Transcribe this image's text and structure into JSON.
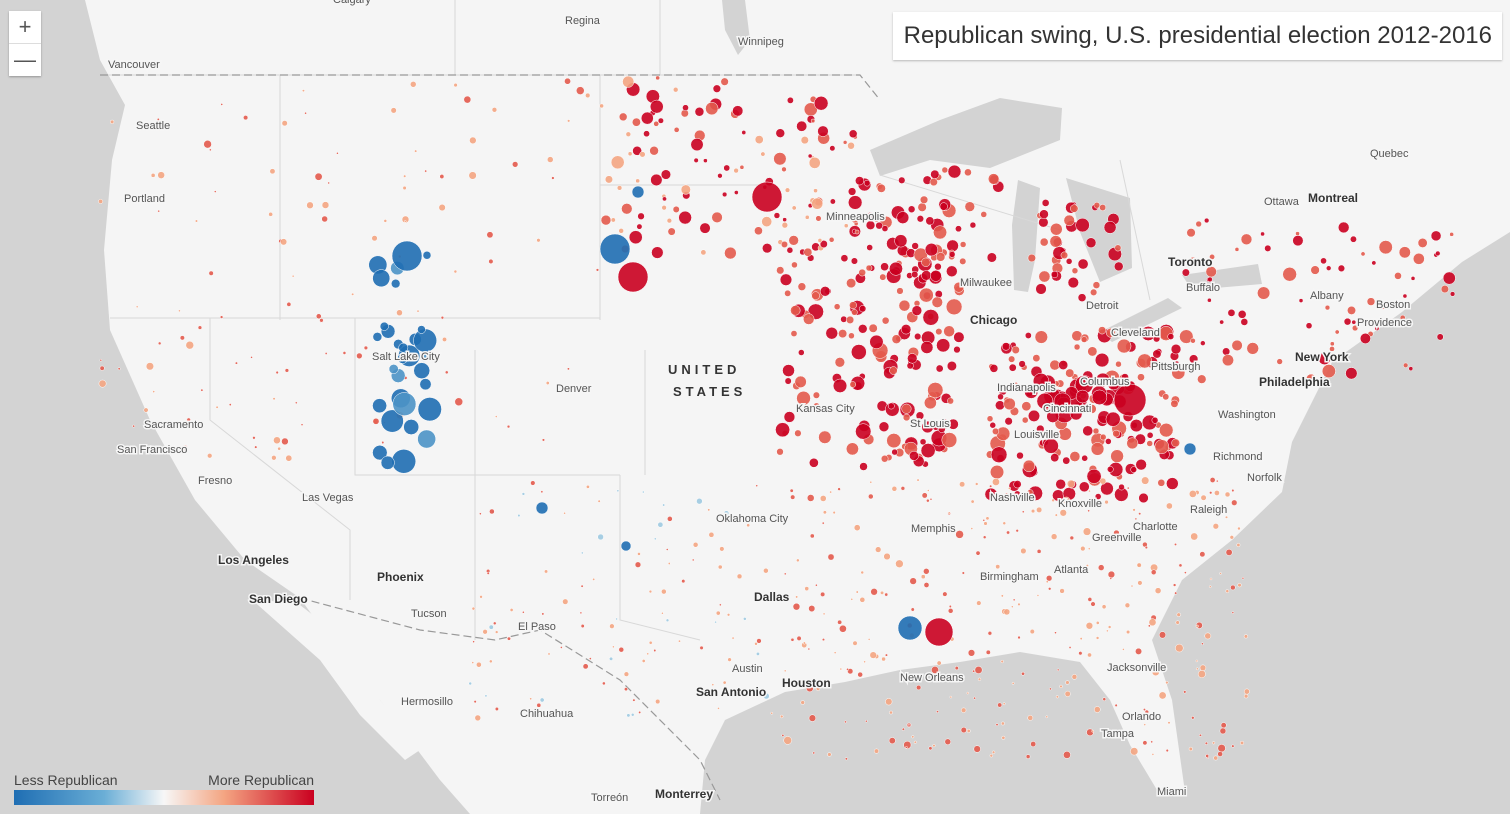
{
  "title": "Republican swing, U.S. presidential election 2012-2016",
  "zoom_controls": {
    "zoom_in": "+",
    "zoom_out": "—"
  },
  "legend": {
    "low_label": "Less Republican",
    "high_label": "More Republican",
    "colors": [
      "#1f6eb3",
      "#6aaed6",
      "#f7f7f7",
      "#f4a582",
      "#ca0020"
    ]
  },
  "map": {
    "water_color": "#d3d3d3",
    "land_color": "#f5f5f5",
    "country_label": [
      "UNITED",
      "STATES"
    ],
    "cities": [
      {
        "name": "Calgary"
      },
      {
        "name": "Regina"
      },
      {
        "name": "Winnipeg"
      },
      {
        "name": "Vancouver"
      },
      {
        "name": "Seattle"
      },
      {
        "name": "Portland"
      },
      {
        "name": "Quebec"
      },
      {
        "name": "Ottawa"
      },
      {
        "name": "Montreal",
        "major": true
      },
      {
        "name": "Toronto",
        "major": true
      },
      {
        "name": "Buffalo"
      },
      {
        "name": "Albany"
      },
      {
        "name": "Boston"
      },
      {
        "name": "Providence"
      },
      {
        "name": "New York",
        "major": true
      },
      {
        "name": "Philadelphia",
        "major": true
      },
      {
        "name": "Washington"
      },
      {
        "name": "Richmond"
      },
      {
        "name": "Norfolk"
      },
      {
        "name": "Raleigh"
      },
      {
        "name": "Charlotte"
      },
      {
        "name": "Greenville"
      },
      {
        "name": "Atlanta"
      },
      {
        "name": "Knoxville"
      },
      {
        "name": "Nashville"
      },
      {
        "name": "Birmingham"
      },
      {
        "name": "Memphis"
      },
      {
        "name": "Jacksonville"
      },
      {
        "name": "Orlando"
      },
      {
        "name": "Tampa"
      },
      {
        "name": "Miami"
      },
      {
        "name": "New Orleans"
      },
      {
        "name": "Houston",
        "major": true
      },
      {
        "name": "Austin"
      },
      {
        "name": "San Antonio",
        "major": true
      },
      {
        "name": "Dallas",
        "major": true
      },
      {
        "name": "Oklahoma City"
      },
      {
        "name": "Kansas City"
      },
      {
        "name": "St Louis"
      },
      {
        "name": "Louisville"
      },
      {
        "name": "Indianapolis"
      },
      {
        "name": "Cincinnati"
      },
      {
        "name": "Columbus"
      },
      {
        "name": "Cleveland"
      },
      {
        "name": "Pittsburgh"
      },
      {
        "name": "Detroit"
      },
      {
        "name": "Chicago",
        "major": true
      },
      {
        "name": "Milwaukee"
      },
      {
        "name": "Minneapolis"
      },
      {
        "name": "Denver"
      },
      {
        "name": "Salt Lake City"
      },
      {
        "name": "Sacramento"
      },
      {
        "name": "San Francisco"
      },
      {
        "name": "Fresno"
      },
      {
        "name": "Las Vegas"
      },
      {
        "name": "Los Angeles",
        "major": true
      },
      {
        "name": "San Diego",
        "major": true
      },
      {
        "name": "Phoenix",
        "major": true
      },
      {
        "name": "Tucson"
      },
      {
        "name": "El Paso"
      },
      {
        "name": "Chihuahua"
      },
      {
        "name": "Hermosillo"
      },
      {
        "name": "Torreón"
      },
      {
        "name": "Monterrey",
        "major": true
      }
    ]
  }
}
